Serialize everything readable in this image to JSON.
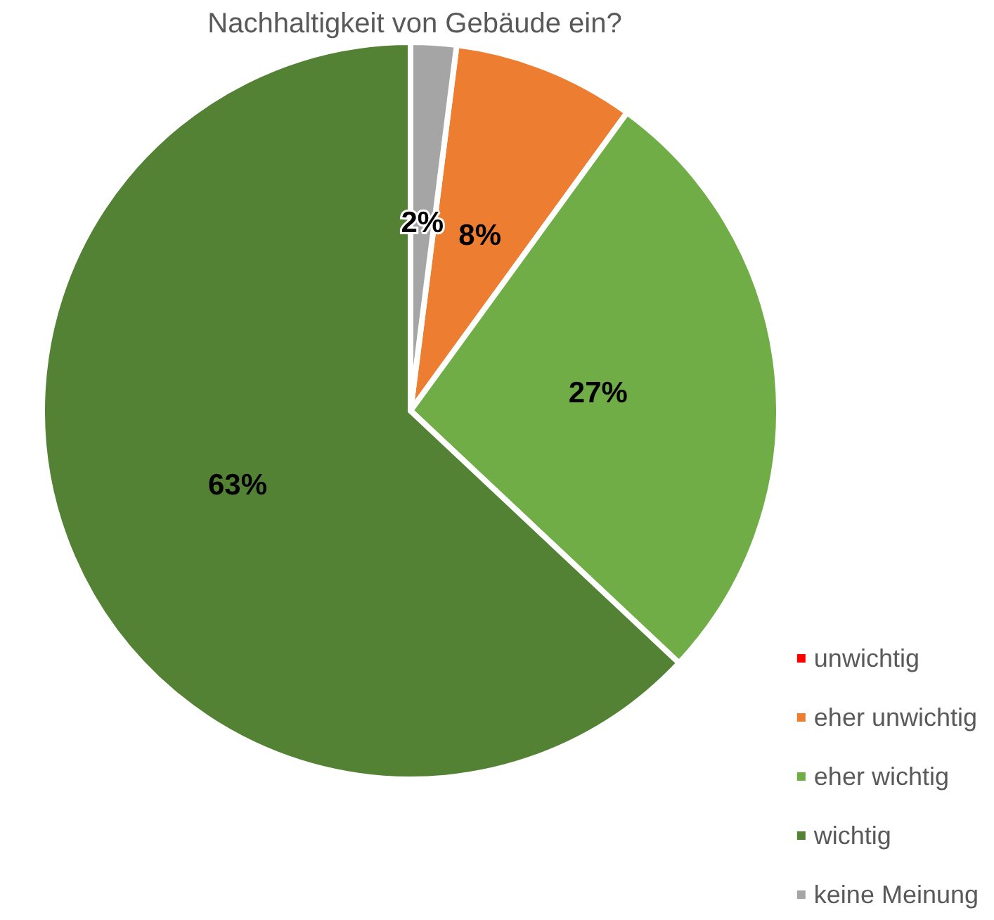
{
  "chart_data": {
    "type": "pie",
    "title": "Nachhaltigkeit von Gebäude ein?",
    "categories": [
      "unwichtig",
      "eher unwichtig",
      "eher wichtig",
      "wichtig",
      "keine Meinung"
    ],
    "values": [
      0,
      8,
      27,
      63,
      2
    ],
    "colors": [
      "#ff0000",
      "#ed7d31",
      "#70ad47",
      "#548235",
      "#a5a5a5"
    ],
    "value_labels": [
      null,
      "8%",
      "27%",
      "63%",
      "2%"
    ],
    "legend": "bottom right"
  }
}
